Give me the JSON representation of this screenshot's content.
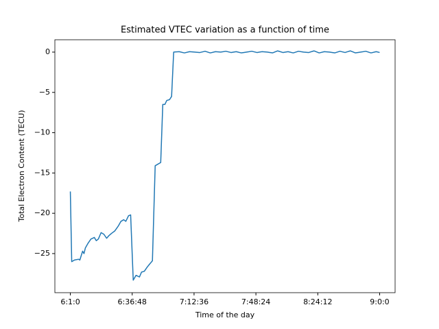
{
  "chart_data": {
    "type": "line",
    "title": "Estimated VTEC variation as a function of time",
    "x_label": "Time of the day",
    "y_label": "Total Electron Content (TECU)",
    "x": [
      361,
      361.8,
      363.4,
      365.8,
      366.5,
      368.1,
      368.9,
      369.7,
      371.3,
      372.9,
      374.9,
      376.0,
      377.2,
      378.8,
      380.4,
      382.0,
      383.2,
      384.8,
      386.7,
      388.7,
      390.3,
      391.9,
      393.1,
      394.7,
      395.9,
      397.4,
      399.0,
      401.0,
      402.2,
      403.8,
      405.4,
      406.9,
      408.5,
      410.1,
      411.7,
      413.3,
      414.5,
      415.7,
      416.8,
      418.4,
      419.6,
      420.8,
      424,
      427,
      430,
      433,
      436,
      439,
      442,
      445,
      448,
      451,
      454,
      457,
      460,
      463,
      466,
      469,
      472,
      475,
      478,
      481,
      484,
      487,
      490,
      493,
      496,
      499,
      502,
      505,
      508,
      511,
      514,
      517,
      520,
      523,
      526,
      529,
      532,
      535,
      538,
      540
    ],
    "series": [
      {
        "name": "VTEC",
        "color": "#1f77b4",
        "values": [
          -17.3,
          -26.0,
          -25.8,
          -25.7,
          -25.8,
          -24.7,
          -25.0,
          -24.3,
          -23.7,
          -23.2,
          -23.0,
          -23.4,
          -23.2,
          -22.4,
          -22.6,
          -23.1,
          -22.8,
          -22.5,
          -22.2,
          -21.6,
          -21.0,
          -20.8,
          -21.0,
          -20.3,
          -20.2,
          -28.3,
          -27.7,
          -27.9,
          -27.3,
          -27.2,
          -26.7,
          -26.3,
          -25.9,
          -14.1,
          -13.9,
          -13.7,
          -6.5,
          -6.5,
          -6.0,
          -5.9,
          -5.5,
          0.0,
          0.05,
          -0.1,
          0.05,
          0.0,
          -0.05,
          0.1,
          -0.1,
          0.05,
          0.0,
          0.1,
          -0.05,
          0.05,
          -0.1,
          0.0,
          0.1,
          -0.05,
          0.05,
          0.0,
          -0.1,
          0.15,
          -0.05,
          0.05,
          -0.1,
          0.1,
          0.0,
          -0.05,
          0.15,
          -0.1,
          0.05,
          0.0,
          -0.1,
          0.1,
          -0.05,
          0.15,
          -0.1,
          0.0,
          0.1,
          -0.1,
          0.05,
          -0.05
        ]
      }
    ],
    "xlim": [
      352.05,
      548.95
    ],
    "xticks": [
      {
        "value": 361,
        "label": "6:1:0"
      },
      {
        "value": 396.8,
        "label": "6:36:48"
      },
      {
        "value": 432.6,
        "label": "7:12:36"
      },
      {
        "value": 468.4,
        "label": "7:48:24"
      },
      {
        "value": 504.2,
        "label": "8:24:12"
      },
      {
        "value": 540,
        "label": "9:0:0"
      }
    ],
    "ylim": [
      -29.85,
      1.53
    ],
    "yticks": [
      {
        "value": -25,
        "label": "−25"
      },
      {
        "value": -20,
        "label": "−20"
      },
      {
        "value": -15,
        "label": "−15"
      },
      {
        "value": -10,
        "label": "−10"
      },
      {
        "value": -5,
        "label": "−5"
      },
      0
    ],
    "grid": false
  }
}
